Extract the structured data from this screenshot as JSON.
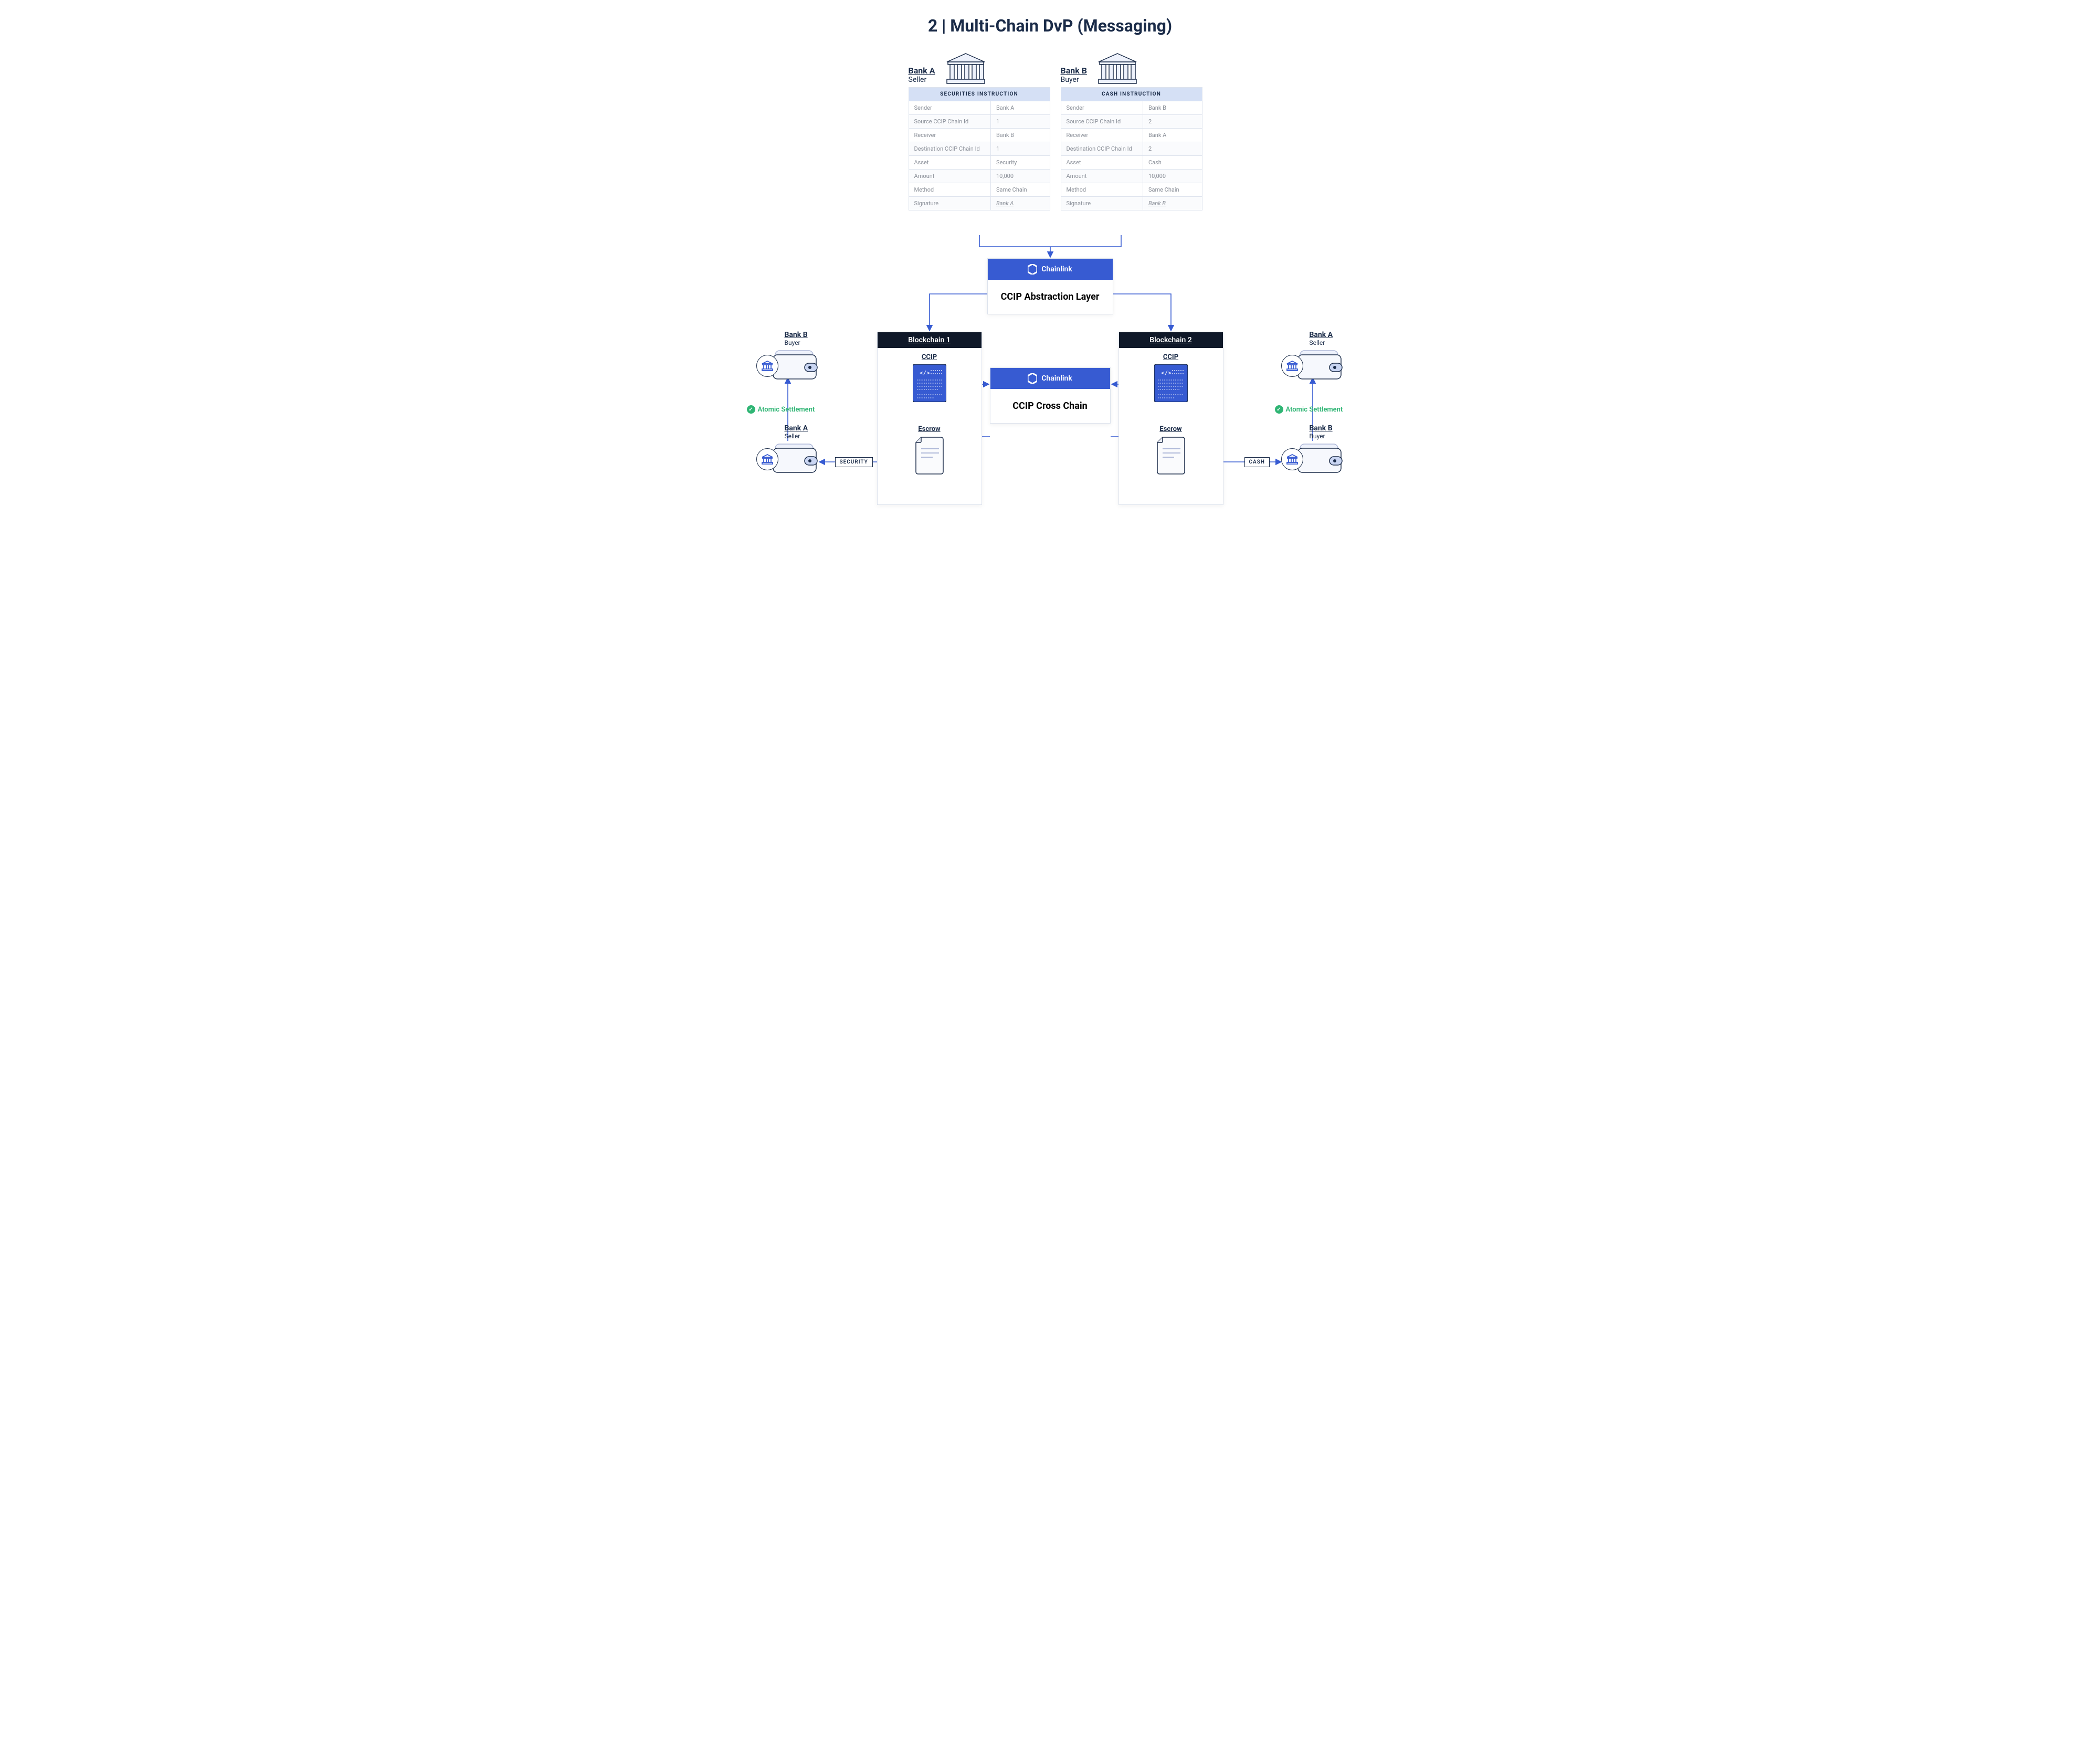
{
  "title": "2 | Multi-Chain DvP (Messaging)",
  "colors": {
    "navy": "#1a2b48",
    "blue": "#375bd2",
    "blue_header_bg": "#d5e0f5",
    "green": "#2fb574",
    "panel_header_bg": "#0f1828",
    "border": "#dde3ed",
    "cell_text": "#8a8f98"
  },
  "bankA": {
    "name": "Bank A",
    "role": "Seller",
    "table_title": "SECURITIES INSTRUCTION",
    "rows": [
      {
        "k": "Sender",
        "v": "Bank A"
      },
      {
        "k": "Source CCIP Chain Id",
        "v": "1"
      },
      {
        "k": "Receiver",
        "v": "Bank B"
      },
      {
        "k": "Destination CCIP Chain Id",
        "v": "1"
      },
      {
        "k": "Asset",
        "v": "Security"
      },
      {
        "k": "Amount",
        "v": "10,000"
      },
      {
        "k": "Method",
        "v": "Same Chain"
      },
      {
        "k": "Signature",
        "v": "Bank A",
        "sig": true
      }
    ]
  },
  "bankB": {
    "name": "Bank B",
    "role": "Buyer",
    "table_title": "CASH INSTRUCTION",
    "rows": [
      {
        "k": "Sender",
        "v": "Bank B"
      },
      {
        "k": "Source CCIP Chain Id",
        "v": "2"
      },
      {
        "k": "Receiver",
        "v": "Bank A"
      },
      {
        "k": "Destination CCIP Chain Id",
        "v": "2"
      },
      {
        "k": "Asset",
        "v": "Cash"
      },
      {
        "k": "Amount",
        "v": "10,000"
      },
      {
        "k": "Method",
        "v": "Same Chain"
      },
      {
        "k": "Signature",
        "v": "Bank B",
        "sig": true
      }
    ]
  },
  "chainlink_brand": "Chainlink",
  "ccip_abstraction": "CCIP Abstraction Layer",
  "ccip_cross": "CCIP Cross Chain",
  "chain1": {
    "title": "Blockchain 1",
    "ccip": "CCIP",
    "escrow": "Escrow"
  },
  "chain2": {
    "title": "Blockchain 2",
    "ccip": "CCIP",
    "escrow": "Escrow"
  },
  "atomic": "Atomic Settlement",
  "tag_security": "SECURITY",
  "tag_cash": "CASH",
  "walletTL": {
    "name": "Bank B",
    "role": "Buyer"
  },
  "walletBL": {
    "name": "Bank A",
    "role": "Seller"
  },
  "walletTR": {
    "name": "Bank A",
    "role": "Seller"
  },
  "walletBR": {
    "name": "Bank B",
    "role": "Buyer"
  }
}
